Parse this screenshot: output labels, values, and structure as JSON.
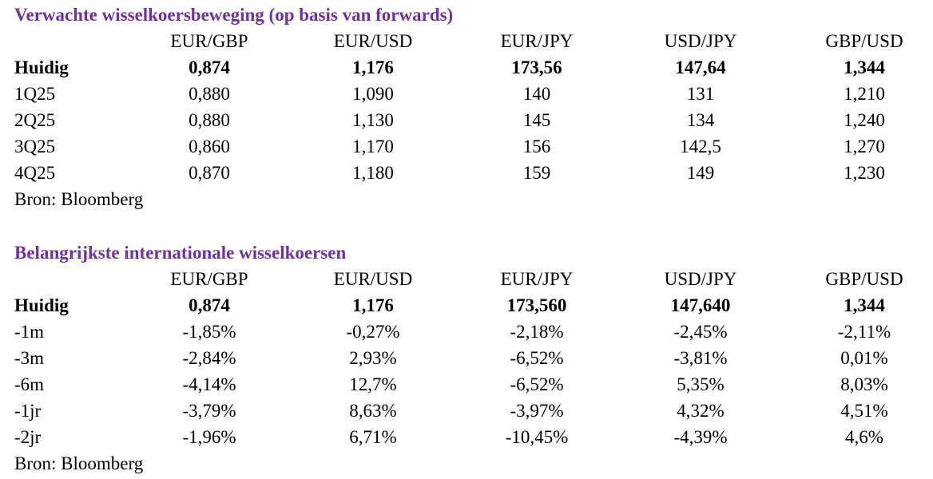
{
  "tables": [
    {
      "title": "Verwachte wisselkoersbeweging (op basis van forwards)",
      "columns": [
        "EUR/GBP",
        "EUR/USD",
        "EUR/JPY",
        "USD/JPY",
        "GBP/USD"
      ],
      "rows": [
        {
          "label": "Huidig",
          "cells": [
            "0,874",
            "1,176",
            "173,56",
            "147,64",
            "1,344"
          ]
        },
        {
          "label": "1Q25",
          "cells": [
            "0,880",
            "1,090",
            "140",
            "131",
            "1,210"
          ]
        },
        {
          "label": "2Q25",
          "cells": [
            "0,880",
            "1,130",
            "145",
            "134",
            "1,240"
          ]
        },
        {
          "label": "3Q25",
          "cells": [
            "0,860",
            "1,170",
            "156",
            "142,5",
            "1,270"
          ]
        },
        {
          "label": "4Q25",
          "cells": [
            "0,870",
            "1,180",
            "159",
            "149",
            "1,230"
          ]
        }
      ],
      "source": "Bron: Bloomberg"
    },
    {
      "title": "Belangrijkste internationale wisselkoersen",
      "columns": [
        "EUR/GBP",
        "EUR/USD",
        "EUR/JPY",
        "USD/JPY",
        "GBP/USD"
      ],
      "rows": [
        {
          "label": "Huidig",
          "cells": [
            "0,874",
            "1,176",
            "173,560",
            "147,640",
            "1,344"
          ]
        },
        {
          "label": "-1m",
          "cells": [
            "-1,85%",
            "-0,27%",
            "-2,18%",
            "-2,45%",
            "-2,11%"
          ]
        },
        {
          "label": "-3m",
          "cells": [
            "-2,84%",
            "2,93%",
            "-6,52%",
            "-3,81%",
            "0,01%"
          ]
        },
        {
          "label": "-6m",
          "cells": [
            "-4,14%",
            "12,7%",
            "-6,52%",
            "5,35%",
            "8,03%"
          ]
        },
        {
          "label": "-1jr",
          "cells": [
            "-3,79%",
            "8,63%",
            "-3,97%",
            "4,32%",
            "4,51%"
          ]
        },
        {
          "label": "-2jr",
          "cells": [
            "-1,96%",
            "6,71%",
            "-10,45%",
            "-4,39%",
            "4,6%"
          ]
        }
      ],
      "source": "Bron: Bloomberg"
    }
  ]
}
